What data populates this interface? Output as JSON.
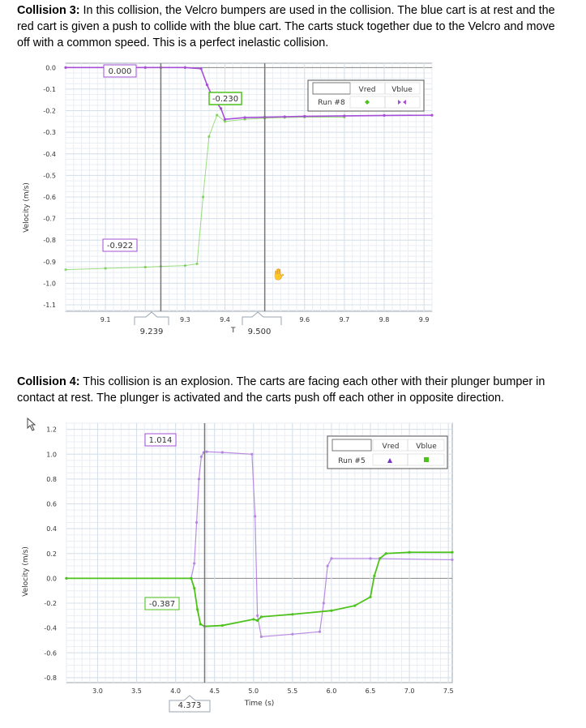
{
  "paragraphs": {
    "c3_heading": "Collision 3:",
    "c3_text": " In this collision, the Velcro bumpers are used in the collision. The blue cart is at rest and the red cart is given a push to collide with the blue cart. The carts stuck together due to the Velcro and move off with a common speed. This is a perfect inelastic collision.",
    "c4_heading": "Collision 4:",
    "c4_text": " This collision is an explosion. The carts are facing each other with their plunger bumper in contact at rest. The plunger is activated and the carts push off each other in opposite direction."
  },
  "colors": {
    "red_series": "#a64fd6",
    "blue_series": "#4dc21a",
    "grid": "#d6e0ea",
    "axis": "#666666"
  },
  "chart_data": [
    {
      "type": "line",
      "ylabel": "Velocity (m/s)",
      "xlabel": "",
      "xlim": [
        9.0,
        9.92
      ],
      "ylim": [
        -1.13,
        0.02
      ],
      "x_ticks": [
        "9.1",
        "9.2",
        "9.3",
        "9.4",
        "9.5",
        "9.6",
        "9.7",
        "9.8",
        "9.9"
      ],
      "y_ticks": [
        "0.0",
        "-0.1",
        "-0.2",
        "-0.3",
        "-0.4",
        "-0.5",
        "-0.6",
        "-0.7",
        "-0.8",
        "-0.9",
        "-1.0",
        "-1.1"
      ],
      "legend": {
        "run": "Run #8",
        "col1": "Vred",
        "col2": "Vblue"
      },
      "annotations": {
        "red_start": "0.000",
        "after_collision": "-0.230",
        "blue_start": "-0.922",
        "cursor_1": "9.239",
        "cursor_2": "9.500",
        "cursor_2_marker": "T"
      },
      "cursors_x": [
        9.239,
        9.5
      ],
      "series": [
        {
          "name": "Vblue",
          "x": [
            9.0,
            9.1,
            9.2,
            9.239,
            9.3,
            9.33,
            9.345,
            9.36,
            9.38,
            9.4,
            9.45,
            9.5,
            9.55,
            9.6,
            9.7
          ],
          "y": [
            -0.937,
            -0.931,
            -0.925,
            -0.922,
            -0.918,
            -0.91,
            -0.6,
            -0.32,
            -0.22,
            -0.25,
            -0.24,
            -0.235,
            -0.232,
            -0.23,
            -0.23
          ]
        },
        {
          "name": "Vred",
          "x": [
            9.0,
            9.1,
            9.2,
            9.239,
            9.3,
            9.34,
            9.355,
            9.37,
            9.39,
            9.4,
            9.45,
            9.5,
            9.55,
            9.6,
            9.7,
            9.8,
            9.92
          ],
          "y": [
            0.0,
            0.0,
            0.0,
            0.0,
            0.0,
            -0.005,
            -0.08,
            -0.14,
            -0.19,
            -0.24,
            -0.232,
            -0.23,
            -0.228,
            -0.226,
            -0.224,
            -0.222,
            -0.221
          ]
        }
      ]
    },
    {
      "type": "line",
      "ylabel": "Velocity (m/s)",
      "xlabel": "Time (s)",
      "xlim": [
        2.6,
        7.55
      ],
      "ylim": [
        -0.84,
        1.25
      ],
      "x_ticks": [
        "3.0",
        "3.5",
        "4.0",
        "4.5",
        "5.0",
        "5.5",
        "6.0",
        "6.5",
        "7.0",
        "7.5"
      ],
      "y_ticks": [
        "1.2",
        "1.0",
        "0.8",
        "0.6",
        "0.4",
        "0.2",
        "0.0",
        "-0.2",
        "-0.4",
        "-0.6",
        "-0.8"
      ],
      "legend": {
        "run": "Run #5",
        "col1": "Vred",
        "col2": "Vblue"
      },
      "annotations": {
        "red_peak": "1.014",
        "blue_low": "-0.387",
        "cursor_1": "4.373"
      },
      "cursors_x": [
        4.373
      ],
      "series": [
        {
          "name": "Vred",
          "x": [
            2.6,
            4.2,
            4.24,
            4.27,
            4.3,
            4.33,
            4.36,
            4.4,
            4.6,
            4.98,
            5.02,
            5.05,
            5.1,
            5.5,
            5.85,
            5.9,
            5.95,
            6.0,
            6.5,
            7.55
          ],
          "y": [
            0.0,
            0.0,
            0.12,
            0.45,
            0.8,
            0.98,
            1.014,
            1.02,
            1.015,
            1.0,
            0.5,
            -0.3,
            -0.47,
            -0.45,
            -0.43,
            -0.2,
            0.1,
            0.16,
            0.16,
            0.15
          ]
        },
        {
          "name": "Vblue",
          "x": [
            2.6,
            4.2,
            4.24,
            4.28,
            4.32,
            4.373,
            4.6,
            5.0,
            5.05,
            5.1,
            5.5,
            6.0,
            6.3,
            6.5,
            6.55,
            6.62,
            6.7,
            7.0,
            7.55
          ],
          "y": [
            0.0,
            0.0,
            -0.08,
            -0.25,
            -0.37,
            -0.387,
            -0.38,
            -0.33,
            -0.34,
            -0.31,
            -0.29,
            -0.26,
            -0.22,
            -0.15,
            0.02,
            0.16,
            0.2,
            0.21,
            0.21
          ]
        }
      ]
    }
  ]
}
